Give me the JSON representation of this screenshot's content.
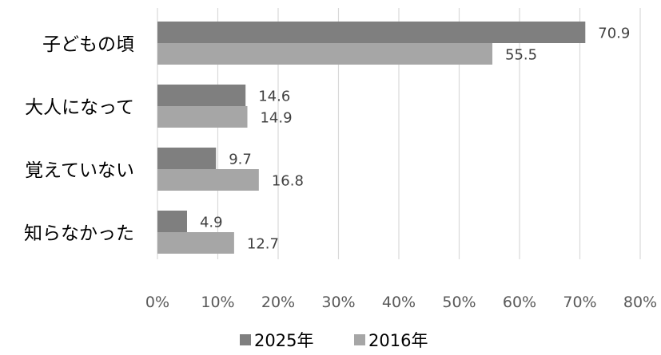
{
  "chart_data": {
    "type": "bar",
    "orientation": "horizontal",
    "categories": [
      "子どもの頃",
      "大人になって",
      "覚えていない",
      "知らなかった"
    ],
    "series": [
      {
        "name": "2025年",
        "values": [
          70.9,
          14.6,
          9.7,
          4.9
        ],
        "color": "#7f7f7f"
      },
      {
        "name": "2016年",
        "values": [
          55.5,
          14.9,
          16.8,
          12.7
        ],
        "color": "#a6a6a6"
      }
    ],
    "x_ticks": [
      "0%",
      "10%",
      "20%",
      "30%",
      "40%",
      "50%",
      "60%",
      "70%",
      "80%"
    ],
    "xlim": [
      0,
      80
    ],
    "grid": "vertical",
    "grid_color": "#d9d9d9",
    "legend_position": "bottom",
    "data_labels": true,
    "title": "",
    "xlabel": "",
    "ylabel": ""
  }
}
